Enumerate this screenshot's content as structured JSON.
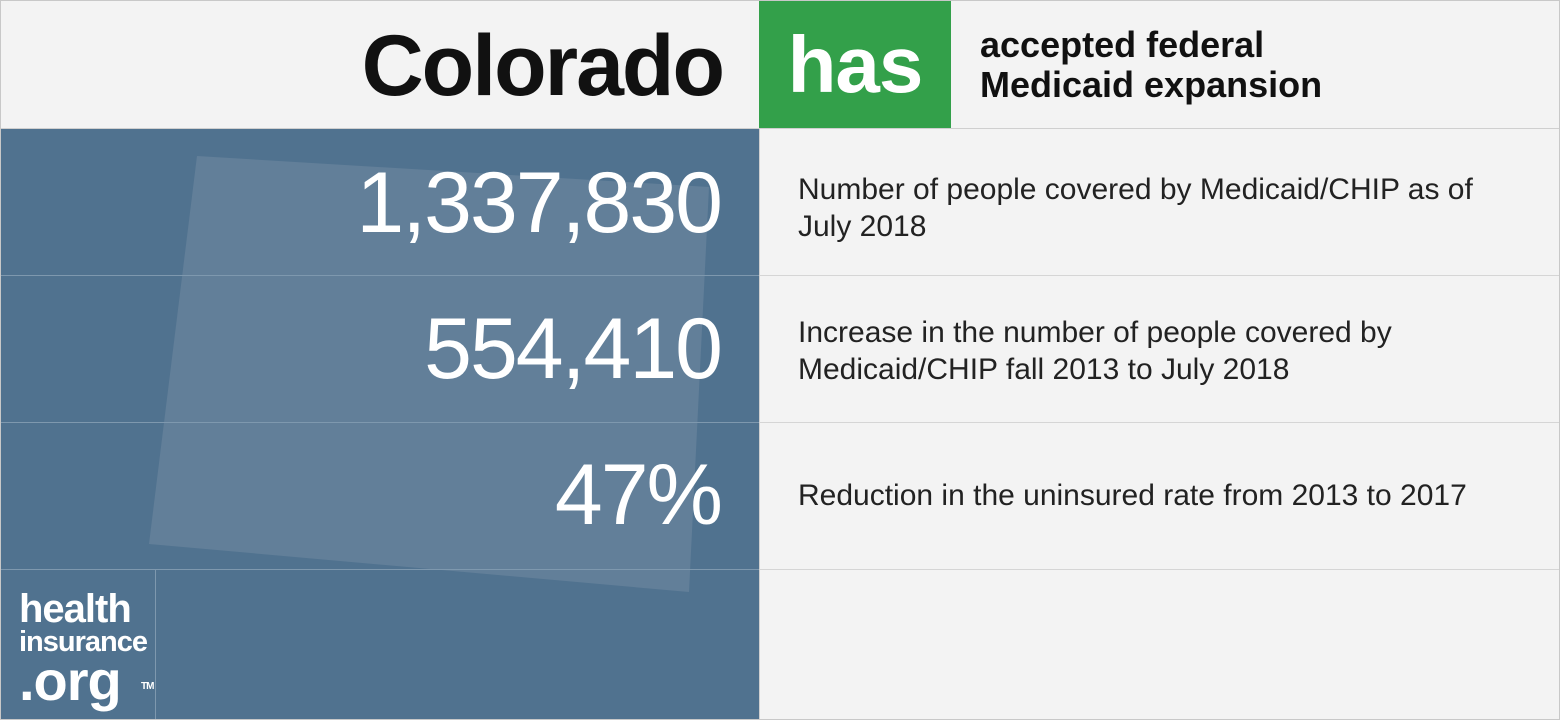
{
  "header": {
    "state": "Colorado",
    "status": "has",
    "status_description": "accepted federal Medicaid expansion",
    "status_color": "#33a04a"
  },
  "stats": [
    {
      "value": "1,337,830",
      "description": "Number of people covered by Medicaid/CHIP as of July 2018"
    },
    {
      "value": "554,410",
      "description": "Increase in the number of people covered by Medicaid/CHIP fall 2013 to July 2018"
    },
    {
      "value": "47%",
      "description": "Reduction in the uninsured rate from 2013 to 2017"
    }
  ],
  "logo": {
    "line1": "health",
    "line2": "insurance",
    "line3": ".org",
    "trademark": "TM"
  },
  "colors": {
    "panel": "#50728f",
    "state_shape": "#627f99",
    "background": "#f3f3f3"
  }
}
